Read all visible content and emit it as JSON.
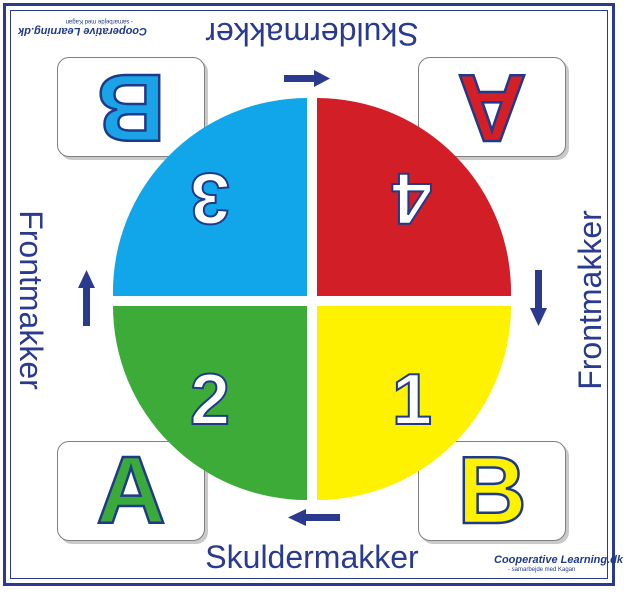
{
  "labels": {
    "shoulder_top": "Skuldermakker",
    "shoulder_bottom": "Skuldermakker",
    "front_left": "Frontmakker",
    "front_right": "Frontmakker"
  },
  "cards": {
    "top_right": {
      "letter": "A",
      "color": "#d41f26"
    },
    "top_left": {
      "letter": "B",
      "color": "#1aa3e6"
    },
    "bottom_left": {
      "letter": "A",
      "color": "#3aab3a"
    },
    "bottom_right": {
      "letter": "B",
      "color": "#fff200"
    }
  },
  "quadrants": {
    "top_left": {
      "number": "3",
      "color": "#11a5ea"
    },
    "top_right": {
      "number": "4",
      "color": "#d21f27"
    },
    "bottom_left": {
      "number": "2",
      "color": "#3cab38"
    },
    "bottom_right": {
      "number": "1",
      "color": "#fff200"
    }
  },
  "logo": {
    "title": "Cooperative Learning.dk",
    "tagline": "- samarbejde med Kagan"
  },
  "colors": {
    "frame": "#2a3b8f",
    "arrow": "#2a3b8f",
    "text": "#2a3b8f"
  },
  "icons": {
    "arrow_top": "arrow-right-icon",
    "arrow_right": "arrow-down-icon",
    "arrow_bottom": "arrow-left-icon",
    "arrow_left": "arrow-up-icon"
  }
}
